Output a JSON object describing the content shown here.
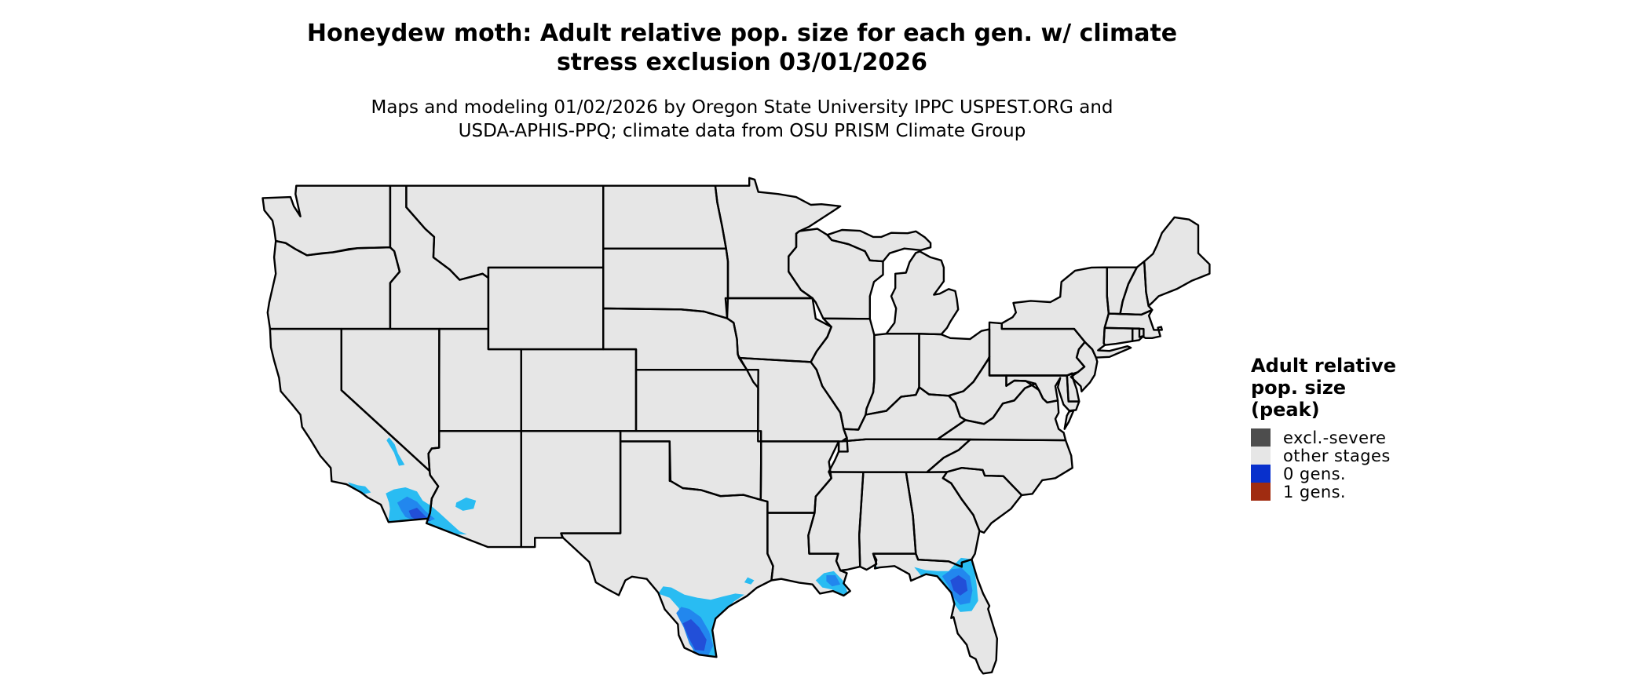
{
  "header": {
    "title": "Honeydew moth: Adult relative pop. size for each gen. w/ climate\nstress exclusion 03/01/2026",
    "subtitle": "Maps and modeling 01/02/2026 by Oregon State University IPPC USPEST.ORG and\nUSDA-APHIS-PPQ; climate data from OSU PRISM Climate Group"
  },
  "legend": {
    "title": "Adult relative\npop. size\n(peak)",
    "items": [
      {
        "label": "excl.-severe",
        "color": "#4D4D4D"
      },
      {
        "label": "other stages",
        "color": "#E6E6E6"
      },
      {
        "label": "0 gens.",
        "color": "#0830CC"
      },
      {
        "label": "1 gens.",
        "color": "#A02C11"
      }
    ]
  },
  "map": {
    "background": "#FFFFFF",
    "base_fill": "#E6E6E6",
    "border_color": "#000000",
    "population_shades": {
      "low": "#29BCF2",
      "mid": "#2287EE",
      "high": "#224FD8"
    },
    "highlighted_regions": [
      {
        "name": "Southern California coast and Imperial Valley",
        "level": "0 gens."
      },
      {
        "name": "Southwestern Arizona (Yuma to Phoenix)",
        "level": "0 gens."
      },
      {
        "name": "Southern Texas / Rio Grande Valley and coast",
        "level": "0 gens."
      },
      {
        "name": "Louisiana Mississippi River delta",
        "level": "0 gens."
      },
      {
        "name": "North-central Florida and Big Bend",
        "level": "0 gens."
      }
    ]
  }
}
